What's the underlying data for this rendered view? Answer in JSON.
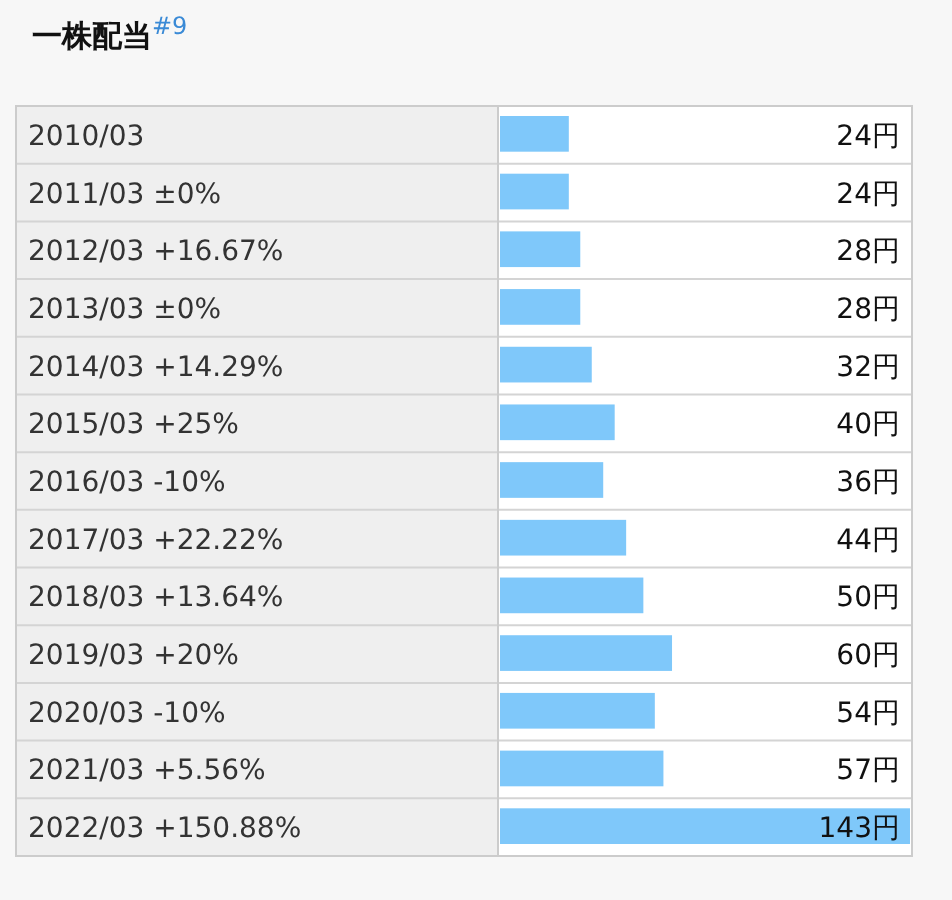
{
  "chart_data": {
    "type": "bar",
    "orientation": "horizontal",
    "title": "一株配当$^{#9}$",
    "categories": [
      "2010/03",
      "2011/03 ±0%",
      "2012/03 +16.67%",
      "2013/03 ±0%",
      "2014/03 +14.29%",
      "2015/03 +25%",
      "2016/03 -10%",
      "2017/03 +22.22%",
      "2018/03 +13.64%",
      "2019/03 +20%",
      "2020/03 -10%",
      "2021/03 +5.56%",
      "2022/03 +150.88%"
    ],
    "values": [
      24,
      24,
      28,
      28,
      32,
      40,
      36,
      44,
      50,
      60,
      54,
      57,
      143
    ],
    "value_labels": [
      "24円",
      "24円",
      "28円",
      "28円",
      "32円",
      "40円",
      "36円",
      "44円",
      "50円",
      "60円",
      "54円",
      "57円",
      "143円"
    ],
    "color": "#7fc8fa"
  }
}
